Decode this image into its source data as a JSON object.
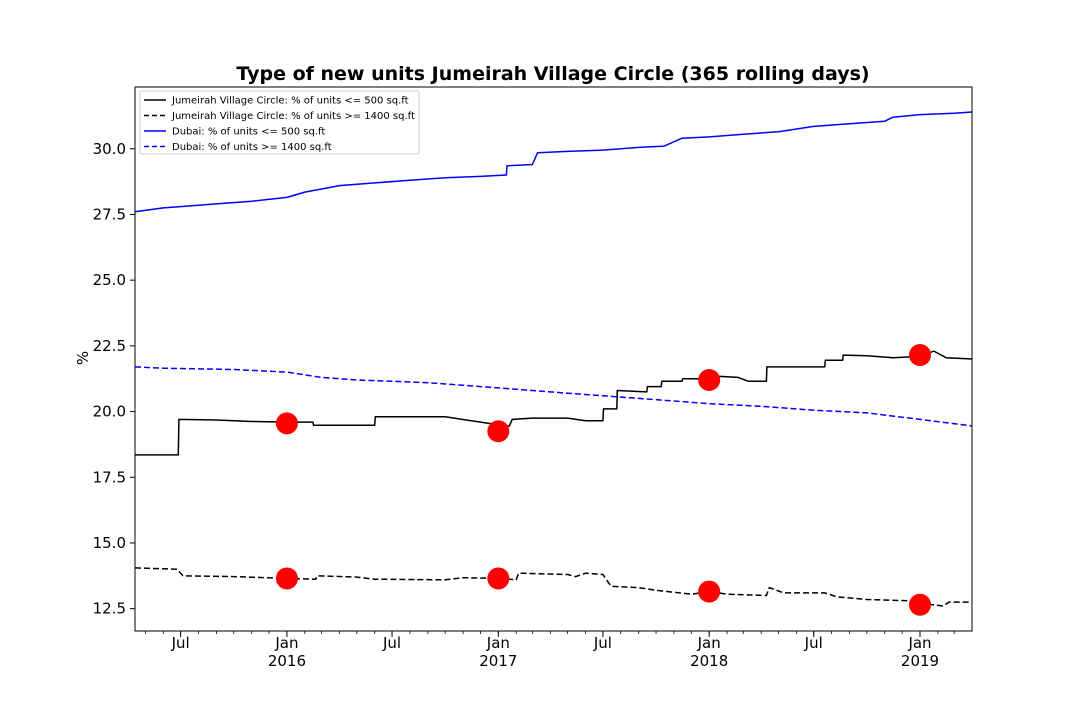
{
  "chart_data": {
    "type": "line",
    "title": "Type of new units Jumeirah Village Circle (365 rolling days)",
    "xlabel": "",
    "ylabel": "%",
    "x_range": [
      "2015-04-13",
      "2019-04-01"
    ],
    "ylim": [
      11.65,
      32.35
    ],
    "y_ticks": [
      12.5,
      15.0,
      17.5,
      20.0,
      22.5,
      25.0,
      27.5,
      30.0
    ],
    "y_tick_labels": [
      "12.5",
      "15.0",
      "17.5",
      "20.0",
      "22.5",
      "25.0",
      "27.5",
      "30.0"
    ],
    "x_ticks": [
      {
        "date": "2015-07-01",
        "line1": "Jul",
        "line2": ""
      },
      {
        "date": "2016-01-01",
        "line1": "Jan",
        "line2": "2016"
      },
      {
        "date": "2016-07-01",
        "line1": "Jul",
        "line2": ""
      },
      {
        "date": "2017-01-01",
        "line1": "Jan",
        "line2": "2017"
      },
      {
        "date": "2017-07-01",
        "line1": "Jul",
        "line2": ""
      },
      {
        "date": "2018-01-01",
        "line1": "Jan",
        "line2": "2018"
      },
      {
        "date": "2018-07-01",
        "line1": "Jul",
        "line2": ""
      },
      {
        "date": "2019-01-01",
        "line1": "Jan",
        "line2": "2019"
      }
    ],
    "grid": false,
    "legend_position": "top-left",
    "series": [
      {
        "name": "Jumeirah Village Circle: % of units <= 500 sq.ft",
        "color": "#000000",
        "style": "solid",
        "points": [
          [
            "2015-04-13",
            18.35
          ],
          [
            "2015-06-27",
            18.35
          ],
          [
            "2015-06-28",
            19.7
          ],
          [
            "2015-09-01",
            19.68
          ],
          [
            "2015-11-01",
            19.62
          ],
          [
            "2016-01-01",
            19.6
          ],
          [
            "2016-02-15",
            19.6
          ],
          [
            "2016-02-16",
            19.48
          ],
          [
            "2016-06-01",
            19.48
          ],
          [
            "2016-06-02",
            19.8
          ],
          [
            "2016-10-01",
            19.8
          ],
          [
            "2016-11-15",
            19.65
          ],
          [
            "2017-01-01",
            19.5
          ],
          [
            "2017-01-20",
            19.45
          ],
          [
            "2017-01-25",
            19.7
          ],
          [
            "2017-03-01",
            19.75
          ],
          [
            "2017-05-01",
            19.75
          ],
          [
            "2017-06-01",
            19.65
          ],
          [
            "2017-07-01",
            19.65
          ],
          [
            "2017-07-02",
            20.1
          ],
          [
            "2017-07-25",
            20.1
          ],
          [
            "2017-07-26",
            20.8
          ],
          [
            "2017-09-15",
            20.75
          ],
          [
            "2017-09-16",
            20.95
          ],
          [
            "2017-10-10",
            20.95
          ],
          [
            "2017-10-11",
            21.15
          ],
          [
            "2017-11-15",
            21.15
          ],
          [
            "2017-11-16",
            21.25
          ],
          [
            "2018-01-10",
            21.25
          ],
          [
            "2018-01-11",
            21.35
          ],
          [
            "2018-02-20",
            21.3
          ],
          [
            "2018-03-10",
            21.15
          ],
          [
            "2018-04-10",
            21.15
          ],
          [
            "2018-04-11",
            21.7
          ],
          [
            "2018-07-20",
            21.7
          ],
          [
            "2018-07-21",
            21.95
          ],
          [
            "2018-08-20",
            21.95
          ],
          [
            "2018-08-21",
            22.15
          ],
          [
            "2018-10-01",
            22.12
          ],
          [
            "2018-11-15",
            22.05
          ],
          [
            "2019-01-01",
            22.1
          ],
          [
            "2019-01-25",
            22.3
          ],
          [
            "2019-02-15",
            22.05
          ],
          [
            "2019-04-01",
            22.0
          ]
        ]
      },
      {
        "name": "Jumeirah Village Circle: % of units >= 1400 sq.ft",
        "color": "#000000",
        "style": "dashed",
        "points": [
          [
            "2015-04-13",
            14.05
          ],
          [
            "2015-06-25",
            14.0
          ],
          [
            "2015-07-05",
            13.75
          ],
          [
            "2015-10-01",
            13.72
          ],
          [
            "2016-01-01",
            13.65
          ],
          [
            "2016-02-20",
            13.62
          ],
          [
            "2016-02-22",
            13.75
          ],
          [
            "2016-05-01",
            13.7
          ],
          [
            "2016-06-01",
            13.62
          ],
          [
            "2016-10-01",
            13.6
          ],
          [
            "2016-11-01",
            13.68
          ],
          [
            "2017-01-01",
            13.65
          ],
          [
            "2017-02-01",
            13.6
          ],
          [
            "2017-02-05",
            13.85
          ],
          [
            "2017-05-01",
            13.8
          ],
          [
            "2017-05-15",
            13.72
          ],
          [
            "2017-06-01",
            13.85
          ],
          [
            "2017-07-01",
            13.8
          ],
          [
            "2017-07-15",
            13.35
          ],
          [
            "2017-09-01",
            13.3
          ],
          [
            "2017-10-01",
            13.2
          ],
          [
            "2017-12-01",
            13.05
          ],
          [
            "2018-01-01",
            13.15
          ],
          [
            "2018-02-01",
            13.05
          ],
          [
            "2018-04-10",
            13.0
          ],
          [
            "2018-04-15",
            13.3
          ],
          [
            "2018-05-10",
            13.1
          ],
          [
            "2018-07-20",
            13.1
          ],
          [
            "2018-08-10",
            12.95
          ],
          [
            "2018-10-01",
            12.85
          ],
          [
            "2018-12-15",
            12.8
          ],
          [
            "2019-01-05",
            12.7
          ],
          [
            "2019-02-10",
            12.6
          ],
          [
            "2019-02-20",
            12.75
          ],
          [
            "2019-04-01",
            12.75
          ]
        ]
      },
      {
        "name": "Dubai: % of units <= 500 sq.ft",
        "color": "#0000ff",
        "style": "solid",
        "points": [
          [
            "2015-04-13",
            27.6
          ],
          [
            "2015-06-01",
            27.75
          ],
          [
            "2015-07-01",
            27.8
          ],
          [
            "2015-09-01",
            27.9
          ],
          [
            "2015-11-01",
            28.0
          ],
          [
            "2016-01-01",
            28.15
          ],
          [
            "2016-02-01",
            28.35
          ],
          [
            "2016-04-01",
            28.6
          ],
          [
            "2016-06-01",
            28.7
          ],
          [
            "2016-08-01",
            28.8
          ],
          [
            "2016-10-01",
            28.9
          ],
          [
            "2016-12-01",
            28.95
          ],
          [
            "2017-01-15",
            29.0
          ],
          [
            "2017-01-16",
            29.35
          ],
          [
            "2017-03-01",
            29.4
          ],
          [
            "2017-03-10",
            29.85
          ],
          [
            "2017-05-01",
            29.9
          ],
          [
            "2017-07-01",
            29.95
          ],
          [
            "2017-09-01",
            30.05
          ],
          [
            "2017-10-15",
            30.1
          ],
          [
            "2017-11-15",
            30.4
          ],
          [
            "2018-01-01",
            30.45
          ],
          [
            "2018-03-01",
            30.55
          ],
          [
            "2018-05-01",
            30.65
          ],
          [
            "2018-07-01",
            30.85
          ],
          [
            "2018-09-01",
            30.95
          ],
          [
            "2018-11-01",
            31.05
          ],
          [
            "2018-11-15",
            31.2
          ],
          [
            "2019-01-01",
            31.3
          ],
          [
            "2019-03-01",
            31.35
          ],
          [
            "2019-04-01",
            31.4
          ]
        ]
      },
      {
        "name": "Dubai: % of units >= 1400 sq.ft",
        "color": "#0000ff",
        "style": "dashed",
        "points": [
          [
            "2015-04-13",
            21.7
          ],
          [
            "2015-06-01",
            21.65
          ],
          [
            "2015-10-01",
            21.6
          ],
          [
            "2016-01-01",
            21.5
          ],
          [
            "2016-03-01",
            21.3
          ],
          [
            "2016-05-01",
            21.2
          ],
          [
            "2016-07-01",
            21.15
          ],
          [
            "2016-09-01",
            21.1
          ],
          [
            "2016-11-01",
            21.0
          ],
          [
            "2017-01-01",
            20.9
          ],
          [
            "2017-03-01",
            20.8
          ],
          [
            "2017-05-01",
            20.7
          ],
          [
            "2017-07-01",
            20.6
          ],
          [
            "2017-09-01",
            20.5
          ],
          [
            "2017-11-01",
            20.4
          ],
          [
            "2018-01-01",
            20.3
          ],
          [
            "2018-04-01",
            20.2
          ],
          [
            "2018-07-01",
            20.05
          ],
          [
            "2018-10-01",
            19.95
          ],
          [
            "2019-01-01",
            19.7
          ],
          [
            "2019-04-01",
            19.45
          ]
        ]
      }
    ],
    "markers": {
      "color": "#ff0000",
      "points": [
        [
          "2016-01-01",
          19.55
        ],
        [
          "2016-01-01",
          13.65
        ],
        [
          "2017-01-01",
          19.25
        ],
        [
          "2017-01-01",
          13.65
        ],
        [
          "2018-01-01",
          21.2
        ],
        [
          "2018-01-01",
          13.15
        ],
        [
          "2019-01-01",
          22.15
        ],
        [
          "2019-01-01",
          12.65
        ]
      ]
    }
  }
}
